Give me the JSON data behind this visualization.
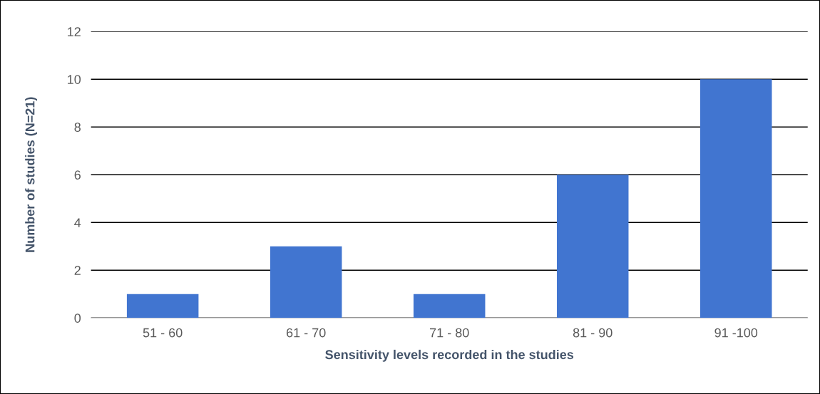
{
  "chart_data": {
    "type": "bar",
    "xlabel": "Sensitivity levels recorded in the studies",
    "ylabel": "Number of studies (N=21)",
    "categories": [
      "51 - 60",
      "61 - 70",
      "71 - 80",
      "81 - 90",
      "91 -100"
    ],
    "values": [
      1,
      3,
      1,
      6,
      10
    ],
    "color": "#4175d0",
    "ylim": [
      0,
      12
    ],
    "yticks": [
      0,
      2,
      4,
      6,
      8,
      10,
      12
    ],
    "grid": "y"
  }
}
